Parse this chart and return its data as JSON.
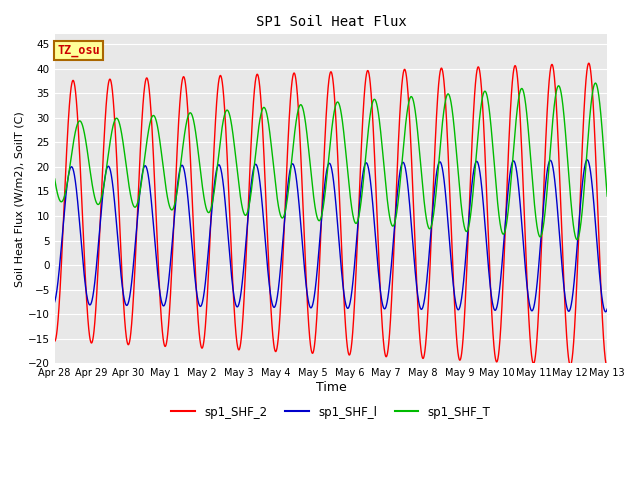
{
  "title": "SP1 Soil Heat Flux",
  "xlabel": "Time",
  "ylabel": "Soil Heat Flux (W/m2), SoilT (C)",
  "ylim": [
    -20,
    47
  ],
  "yticks": [
    -20,
    -15,
    -10,
    -5,
    0,
    5,
    10,
    15,
    20,
    25,
    30,
    35,
    40,
    45
  ],
  "bg_color": "#e8e8e8",
  "fig_color": "#ffffff",
  "grid_color": "#ffffff",
  "tz_label": "TZ_osu",
  "tz_bg": "#ffff99",
  "tz_border": "#aa6600",
  "legend_labels": [
    "sp1_SHF_2",
    "sp1_SHF_l",
    "sp1_SHF_T"
  ],
  "legend_colors": [
    "#ff0000",
    "#0000cc",
    "#00bb00"
  ],
  "x_tick_labels": [
    "Apr 28",
    "Apr 29",
    "Apr 30",
    "May 1",
    "May 2",
    "May 3",
    "May 4",
    "May 5",
    "May 6",
    "May 7",
    "May 8",
    "May 9",
    "May 10",
    "May 11",
    "May 12",
    "May 13"
  ],
  "period": 1.0,
  "red_amp": 26.5,
  "red_mean": 11.0,
  "red_phase": -1.57,
  "red_amp_grow": 0.3,
  "red_mean_drift": -0.05,
  "blue_amp": 14.0,
  "blue_mean": 6.0,
  "blue_phase": -1.3,
  "blue_amp_grow": 0.1,
  "green_amp": 8.0,
  "green_mean": 21.0,
  "green_phase": -2.7,
  "green_amp_grow": 0.55
}
